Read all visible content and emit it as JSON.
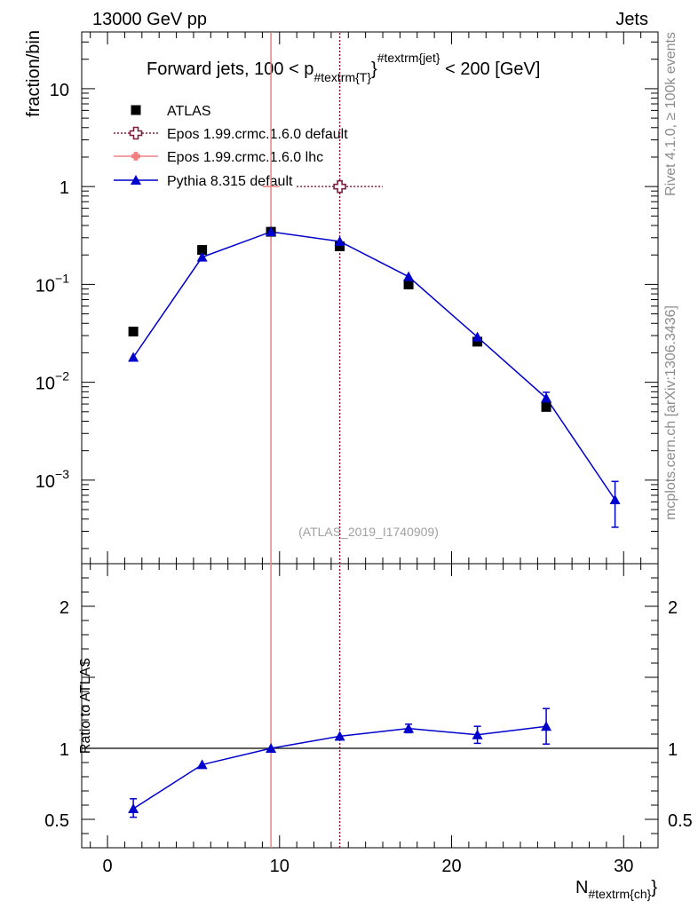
{
  "header": {
    "left": "13000 GeV pp",
    "right": "Jets"
  },
  "side_labels": {
    "rivet": "Rivet 4.1.0, ≥ 100k events",
    "mcplots": "mcplots.cern.ch [arXiv:1306.3436]"
  },
  "chart_data": {
    "type": "scatter",
    "title": "Forward jets, 100 < p_{#textrm{T}}^{#textrm{jet}} < 200 [GeV]",
    "title_parts": {
      "main": "Forward jets, 100 < p",
      "sub": "#textrm{T}",
      "sup": "#textrm{jet}",
      "tail": " < 200 [GeV]"
    },
    "xlabel": "N",
    "xlabel_sub": "#textrm{ch}",
    "ylabel": "fraction/bin",
    "ratio_ylabel": "Ratio to ATLAS",
    "watermark": "(ATLAS_2019_I1740909)",
    "xlim": [
      -1.5,
      32
    ],
    "ylim_log": [
      0.00014,
      38
    ],
    "ratio_ylim": [
      0.3,
      2.3
    ],
    "x_ticks": [
      0,
      10,
      20,
      30
    ],
    "y_ticks": [
      {
        "value": 10,
        "label": "10"
      },
      {
        "value": 1,
        "label": "1"
      },
      {
        "value": 0.1,
        "base": "10",
        "exp": "−1"
      },
      {
        "value": 0.01,
        "base": "10",
        "exp": "−2"
      },
      {
        "value": 0.001,
        "base": "10",
        "exp": "−3"
      }
    ],
    "ratio_ticks": [
      {
        "value": 0.5,
        "label": "0.5"
      },
      {
        "value": 1,
        "label": "1"
      },
      {
        "value": 2,
        "label": "2"
      }
    ],
    "legend": {
      "position": "top-left",
      "entries": [
        {
          "label": "ATLAS",
          "marker": "square",
          "color": "#000000"
        },
        {
          "label": "Epos 1.99.crmc.1.6.0 default",
          "marker": "open-cross",
          "color": "#7b1f3d"
        },
        {
          "label": "Epos 1.99.crmc.1.6.0 lhc",
          "marker": "cross",
          "color": "#f08080"
        },
        {
          "label": "Pythia 8.315 default",
          "marker": "triangle",
          "color": "#0000cc"
        }
      ]
    },
    "series": [
      {
        "name": "ATLAS",
        "color": "#000000",
        "x": [
          1.5,
          5.5,
          9.5,
          13.5,
          17.5,
          21.5,
          25.5
        ],
        "y": [
          0.033,
          0.225,
          0.345,
          0.245,
          0.1,
          0.026,
          0.0056
        ]
      },
      {
        "name": "Epos 1.99.crmc.1.6.0 default",
        "color": "#7b1f3d",
        "x": [
          13.5
        ],
        "y": [
          1.0
        ],
        "xerr": [
          2.5
        ]
      },
      {
        "name": "Epos 1.99.crmc.1.6.0 lhc",
        "color": "#f08080",
        "x": [
          9.5
        ],
        "y": [
          1.0
        ],
        "xerr": [
          0.5
        ]
      },
      {
        "name": "Pythia 8.315 default",
        "color": "#0000cc",
        "x": [
          1.5,
          5.5,
          9.5,
          13.5,
          17.5,
          21.5,
          25.5,
          29.5
        ],
        "y": [
          0.018,
          0.19,
          0.345,
          0.275,
          0.12,
          0.029,
          0.0069,
          0.00063
        ],
        "ylow": [
          0.017,
          0.186,
          0.343,
          0.273,
          0.118,
          0.028,
          0.0061,
          0.00033
        ],
        "yhigh": [
          0.019,
          0.194,
          0.347,
          0.277,
          0.122,
          0.03,
          0.0079,
          0.00097
        ]
      }
    ],
    "ratio": {
      "reference_line": 1.0,
      "series": [
        {
          "name": "Pythia 8.315 default",
          "color": "#0000cc",
          "x": [
            1.5,
            5.5,
            9.5,
            13.5,
            17.5,
            21.5,
            25.5
          ],
          "y": [
            0.575,
            0.885,
            1.0,
            1.085,
            1.14,
            1.095,
            1.155
          ],
          "ylow": [
            0.515,
            0.87,
            0.99,
            1.075,
            1.11,
            1.035,
            1.03
          ],
          "yhigh": [
            0.645,
            0.9,
            1.01,
            1.095,
            1.17,
            1.155,
            1.28
          ]
        }
      ]
    }
  }
}
